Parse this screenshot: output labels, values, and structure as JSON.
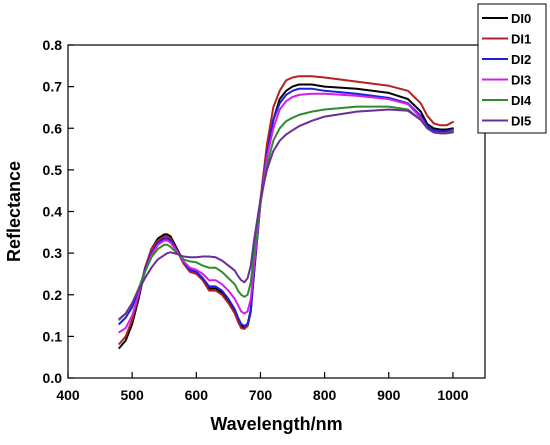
{
  "chart_data": {
    "type": "line",
    "title": "",
    "xlabel": "Wavelength/nm",
    "ylabel": "Reflectance",
    "xlim": [
      400,
      1050
    ],
    "ylim": [
      0.0,
      0.8
    ],
    "xticks": [
      400,
      500,
      600,
      700,
      800,
      900,
      1000
    ],
    "yticks": [
      0.0,
      0.1,
      0.2,
      0.3,
      0.4,
      0.5,
      0.6,
      0.7,
      0.8
    ],
    "xtick_labels": [
      "400",
      "500",
      "600",
      "700",
      "800",
      "900",
      "1000"
    ],
    "ytick_labels": [
      "0.0",
      "0.1",
      "0.2",
      "0.3",
      "0.4",
      "0.5",
      "0.6",
      "0.7",
      "0.8"
    ],
    "grid": false,
    "legend_position": "top-right",
    "series": [
      {
        "name": "DI0",
        "color": "#000000",
        "x": [
          480,
          490,
          500,
          510,
          520,
          530,
          540,
          550,
          555,
          560,
          570,
          580,
          590,
          600,
          610,
          620,
          630,
          640,
          650,
          660,
          665,
          670,
          675,
          680,
          685,
          690,
          700,
          710,
          720,
          730,
          740,
          750,
          760,
          780,
          800,
          850,
          900,
          930,
          950,
          960,
          970,
          980,
          990,
          1000
        ],
        "y": [
          0.072,
          0.09,
          0.13,
          0.19,
          0.26,
          0.31,
          0.335,
          0.345,
          0.345,
          0.34,
          0.31,
          0.28,
          0.26,
          0.255,
          0.24,
          0.215,
          0.215,
          0.205,
          0.185,
          0.16,
          0.14,
          0.125,
          0.12,
          0.125,
          0.16,
          0.25,
          0.42,
          0.54,
          0.62,
          0.67,
          0.69,
          0.7,
          0.705,
          0.705,
          0.7,
          0.695,
          0.685,
          0.67,
          0.64,
          0.61,
          0.6,
          0.597,
          0.597,
          0.6
        ]
      },
      {
        "name": "DI1",
        "color": "#b22222",
        "x": [
          480,
          490,
          500,
          510,
          520,
          530,
          540,
          550,
          555,
          560,
          570,
          580,
          590,
          600,
          610,
          620,
          630,
          640,
          650,
          660,
          665,
          670,
          675,
          680,
          685,
          690,
          700,
          710,
          720,
          730,
          740,
          750,
          760,
          780,
          800,
          850,
          900,
          930,
          950,
          960,
          970,
          980,
          990,
          1000
        ],
        "y": [
          0.082,
          0.1,
          0.14,
          0.2,
          0.265,
          0.31,
          0.33,
          0.34,
          0.34,
          0.335,
          0.305,
          0.275,
          0.255,
          0.25,
          0.235,
          0.21,
          0.21,
          0.2,
          0.18,
          0.155,
          0.135,
          0.12,
          0.118,
          0.125,
          0.165,
          0.26,
          0.43,
          0.56,
          0.65,
          0.69,
          0.715,
          0.722,
          0.725,
          0.725,
          0.722,
          0.712,
          0.702,
          0.69,
          0.66,
          0.63,
          0.612,
          0.607,
          0.607,
          0.615
        ]
      },
      {
        "name": "DI2",
        "color": "#1f1fe0",
        "x": [
          480,
          490,
          500,
          510,
          520,
          530,
          540,
          550,
          555,
          560,
          570,
          580,
          590,
          600,
          610,
          620,
          630,
          640,
          650,
          660,
          665,
          670,
          675,
          680,
          685,
          690,
          700,
          710,
          720,
          730,
          740,
          750,
          760,
          780,
          800,
          850,
          900,
          930,
          950,
          960,
          970,
          980,
          990,
          1000
        ],
        "y": [
          0.13,
          0.145,
          0.17,
          0.21,
          0.26,
          0.3,
          0.325,
          0.335,
          0.335,
          0.33,
          0.305,
          0.28,
          0.26,
          0.255,
          0.24,
          0.22,
          0.22,
          0.21,
          0.19,
          0.165,
          0.145,
          0.13,
          0.125,
          0.13,
          0.165,
          0.255,
          0.42,
          0.54,
          0.62,
          0.66,
          0.68,
          0.69,
          0.695,
          0.695,
          0.69,
          0.683,
          0.673,
          0.66,
          0.63,
          0.605,
          0.595,
          0.593,
          0.593,
          0.598
        ]
      },
      {
        "name": "DI3",
        "color": "#d31fe8",
        "x": [
          480,
          490,
          500,
          510,
          520,
          530,
          540,
          550,
          555,
          560,
          570,
          580,
          590,
          600,
          610,
          620,
          630,
          640,
          650,
          660,
          665,
          670,
          675,
          680,
          685,
          690,
          700,
          710,
          720,
          730,
          740,
          750,
          760,
          780,
          800,
          850,
          900,
          930,
          950,
          960,
          970,
          980,
          990,
          1000
        ],
        "y": [
          0.11,
          0.12,
          0.15,
          0.2,
          0.255,
          0.295,
          0.32,
          0.33,
          0.33,
          0.325,
          0.305,
          0.28,
          0.265,
          0.26,
          0.25,
          0.235,
          0.235,
          0.225,
          0.21,
          0.19,
          0.175,
          0.16,
          0.155,
          0.16,
          0.19,
          0.27,
          0.42,
          0.53,
          0.6,
          0.645,
          0.665,
          0.675,
          0.68,
          0.683,
          0.683,
          0.678,
          0.67,
          0.658,
          0.625,
          0.6,
          0.59,
          0.588,
          0.588,
          0.593
        ]
      },
      {
        "name": "DI4",
        "color": "#2e8b2e",
        "x": [
          480,
          490,
          500,
          510,
          520,
          530,
          540,
          550,
          555,
          560,
          570,
          580,
          590,
          600,
          610,
          620,
          630,
          640,
          650,
          660,
          665,
          670,
          675,
          680,
          685,
          690,
          700,
          710,
          720,
          730,
          740,
          750,
          760,
          780,
          800,
          850,
          900,
          930,
          950,
          960,
          970,
          980,
          990,
          1000
        ],
        "y": [
          0.14,
          0.155,
          0.18,
          0.215,
          0.255,
          0.29,
          0.31,
          0.32,
          0.32,
          0.315,
          0.3,
          0.285,
          0.28,
          0.278,
          0.27,
          0.265,
          0.265,
          0.255,
          0.24,
          0.225,
          0.21,
          0.2,
          0.195,
          0.2,
          0.23,
          0.3,
          0.42,
          0.51,
          0.57,
          0.6,
          0.617,
          0.625,
          0.632,
          0.64,
          0.645,
          0.652,
          0.652,
          0.645,
          0.62,
          0.6,
          0.59,
          0.588,
          0.588,
          0.593
        ]
      },
      {
        "name": "DI5",
        "color": "#6a2e98",
        "x": [
          480,
          490,
          500,
          510,
          520,
          530,
          540,
          550,
          555,
          560,
          570,
          580,
          590,
          600,
          610,
          620,
          630,
          640,
          650,
          660,
          665,
          670,
          675,
          680,
          685,
          690,
          700,
          710,
          720,
          730,
          740,
          750,
          760,
          780,
          800,
          850,
          900,
          930,
          950,
          960,
          970,
          980,
          990,
          1000
        ],
        "y": [
          0.142,
          0.155,
          0.18,
          0.21,
          0.24,
          0.265,
          0.285,
          0.295,
          0.3,
          0.302,
          0.298,
          0.292,
          0.29,
          0.29,
          0.292,
          0.292,
          0.29,
          0.282,
          0.27,
          0.258,
          0.245,
          0.235,
          0.23,
          0.24,
          0.27,
          0.33,
          0.43,
          0.5,
          0.545,
          0.57,
          0.585,
          0.595,
          0.605,
          0.618,
          0.628,
          0.64,
          0.645,
          0.642,
          0.62,
          0.6,
          0.59,
          0.588,
          0.588,
          0.59
        ]
      }
    ]
  }
}
